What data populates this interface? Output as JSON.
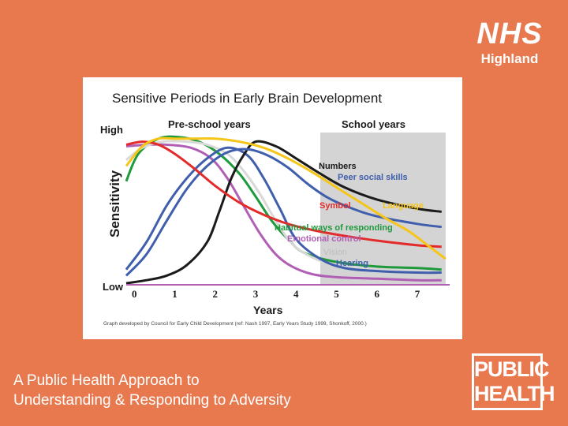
{
  "brand": {
    "nhs_mark": "NHS",
    "nhs_region": "Highland",
    "ph_line1": "PUBLIC",
    "ph_line2": "HEALTH"
  },
  "slide": {
    "title_line1": "A Public Health Approach to",
    "title_line2": "Understanding & Responding to Adversity"
  },
  "chart_data": {
    "type": "line",
    "title": "Sensitive Periods in Early Brain Development",
    "xlabel": "Years",
    "ylabel": "Sensitivity",
    "y_high_label": "High",
    "y_low_label": "Low",
    "xlim": [
      -0.2,
      7.8
    ],
    "ylim": [
      0,
      10
    ],
    "x_ticks": [
      0,
      1,
      2,
      3,
      4,
      5,
      6,
      7
    ],
    "shaded_region": {
      "from": 4.6,
      "to": 7.7
    },
    "period_labels": {
      "preschool": "Pre-school years",
      "school": "School years"
    },
    "source_note": "Graph developed by Council for Early Child Development (ref: Nash 1997, Early Years Study 1999, Shonkoff, 2000.)",
    "series": [
      {
        "name": "Emotional control",
        "label": "Emotional control",
        "color": "#b05fb5",
        "x": [
          -0.2,
          0.3,
          0.8,
          1.4,
          1.9,
          2.3,
          2.7,
          3.1,
          3.5,
          3.9,
          4.4,
          5.0,
          6.0,
          7.0,
          7.6
        ],
        "y": [
          9.1,
          9.2,
          9.2,
          9.0,
          8.3,
          7.0,
          5.2,
          3.4,
          2.0,
          1.2,
          0.7,
          0.5,
          0.4,
          0.3,
          0.3
        ]
      },
      {
        "name": "Habitual ways of responding",
        "label": "Habitual ways of responding",
        "color": "#1e9a3c",
        "x": [
          -0.2,
          0.1,
          0.6,
          1.1,
          1.6,
          2.1,
          2.6,
          3.0,
          3.4,
          3.8,
          4.2,
          5.0,
          6.0,
          7.0,
          7.6
        ],
        "y": [
          6.8,
          8.6,
          9.6,
          9.7,
          9.4,
          8.6,
          7.3,
          5.8,
          4.2,
          3.0,
          2.1,
          1.5,
          1.2,
          1.1,
          1.0
        ]
      },
      {
        "name": "Vision",
        "label": "Vision",
        "color": "#d9d9d9",
        "x": [
          -0.2,
          0.2,
          0.7,
          1.3,
          1.8,
          2.3,
          2.7,
          3.1,
          3.5,
          3.9,
          4.4,
          5.0,
          6.0,
          7.0,
          7.6
        ],
        "y": [
          8.2,
          9.0,
          9.4,
          9.4,
          9.2,
          8.6,
          7.5,
          6.0,
          4.2,
          2.7,
          1.8,
          1.3,
          1.0,
          0.9,
          0.8
        ]
      },
      {
        "name": "Hearing",
        "label": "Hearing",
        "color": "#3f5fad",
        "x": [
          -0.2,
          0.3,
          0.8,
          1.3,
          1.8,
          2.3,
          2.8,
          3.2,
          3.6,
          4.0,
          4.6,
          5.2,
          6.0,
          7.0,
          7.6
        ],
        "y": [
          1.0,
          2.8,
          5.2,
          7.0,
          8.3,
          9.0,
          8.5,
          7.0,
          5.0,
          3.0,
          1.7,
          1.1,
          0.9,
          0.8,
          0.8
        ]
      },
      {
        "name": "Numbers",
        "label": "Numbers",
        "color": "#1a1a1a",
        "x": [
          -0.2,
          0.3,
          0.8,
          1.3,
          1.8,
          2.1,
          2.4,
          2.7,
          3.0,
          3.5,
          4.0,
          4.6,
          5.2,
          6.0,
          7.0,
          7.6
        ],
        "y": [
          0.1,
          0.3,
          0.6,
          1.3,
          2.8,
          4.8,
          7.0,
          8.5,
          9.4,
          9.1,
          8.3,
          7.3,
          6.4,
          5.6,
          5.0,
          4.8
        ]
      },
      {
        "name": "Peer social skills",
        "label": "Peer social skills",
        "color": "#3f5fad",
        "x": [
          -0.2,
          0.3,
          0.8,
          1.3,
          1.8,
          2.3,
          2.8,
          3.3,
          3.8,
          4.3,
          4.8,
          5.4,
          6.0,
          7.0,
          7.6
        ],
        "y": [
          0.6,
          2.0,
          4.2,
          6.3,
          7.8,
          8.7,
          8.9,
          8.5,
          7.7,
          6.6,
          5.7,
          5.0,
          4.5,
          4.0,
          3.8
        ]
      },
      {
        "name": "Symbol",
        "label": "Symbol",
        "color": "#e32b2b",
        "x": [
          -0.2,
          0.2,
          0.6,
          1.0,
          1.5,
          2.0,
          2.6,
          3.2,
          3.8,
          4.4,
          5.0,
          6.0,
          7.0,
          7.6
        ],
        "y": [
          9.2,
          9.4,
          9.2,
          8.6,
          7.6,
          6.5,
          5.4,
          4.6,
          4.0,
          3.6,
          3.3,
          2.9,
          2.6,
          2.5
        ]
      },
      {
        "name": "Language",
        "label": "Language",
        "color": "#f5c518",
        "x": [
          -0.2,
          0.2,
          0.6,
          1.0,
          1.5,
          2.0,
          2.6,
          3.2,
          3.8,
          4.4,
          5.0,
          5.6,
          6.2,
          6.8,
          7.3,
          7.7
        ],
        "y": [
          7.8,
          9.1,
          9.6,
          9.6,
          9.6,
          9.6,
          9.4,
          9.0,
          8.3,
          7.4,
          6.4,
          5.4,
          4.4,
          3.5,
          2.5,
          1.7
        ]
      }
    ],
    "label_colors": {
      "numbers": "#1a1a1a",
      "peer": "#3f5fad",
      "symbol": "#e32b2b",
      "language": "#f5c518",
      "habitual": "#1e9a3c",
      "emotional": "#b05fb5",
      "vision": "#bdbdbd",
      "hearing": "#3f5fad",
      "axis": "#1a1a1a",
      "shade": "#d4d4d4",
      "lowline": "#b05fb5"
    }
  }
}
